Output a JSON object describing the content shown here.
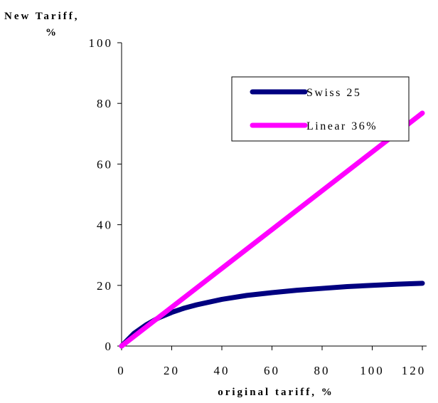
{
  "chart_data": {
    "type": "line",
    "title": "",
    "ylabel": "New Tariff,",
    "ylabel_line2": "%",
    "xlabel": "original tariff, %",
    "xlim": [
      0,
      120
    ],
    "ylim": [
      0,
      100
    ],
    "xticks": [
      "0",
      "20",
      "40",
      "60",
      "80",
      "100",
      "120"
    ],
    "yticks": [
      "0",
      "20",
      "40",
      "60",
      "80",
      "100"
    ],
    "grid": false,
    "legend_position": "top-right",
    "x": [
      0,
      5,
      10,
      15,
      20,
      25,
      30,
      40,
      50,
      60,
      70,
      80,
      90,
      100,
      110,
      120
    ],
    "series": [
      {
        "name": "Swiss 25",
        "color": "#000080",
        "values": [
          0,
          4.2,
          7.1,
          9.4,
          11.1,
          12.5,
          13.6,
          15.4,
          16.7,
          17.6,
          18.4,
          19.0,
          19.6,
          20.0,
          20.4,
          20.7
        ]
      },
      {
        "name": "Linear 36%",
        "color": "#ff00ff",
        "values": [
          0,
          3.2,
          6.4,
          9.6,
          12.8,
          16.0,
          19.2,
          25.6,
          32.0,
          38.4,
          44.8,
          51.2,
          57.6,
          64.0,
          70.4,
          76.8
        ]
      }
    ]
  }
}
